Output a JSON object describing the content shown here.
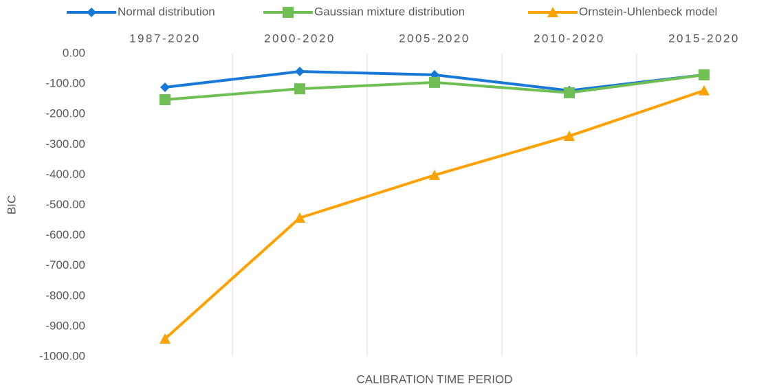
{
  "chart_data": {
    "type": "line",
    "categories": [
      "1987-2020",
      "2000-2020",
      "2005-2020",
      "2010-2020",
      "2015-2020"
    ],
    "series": [
      {
        "name": "Normal distribution",
        "color": "#1878d6",
        "marker": "diamond",
        "values": [
          -111,
          -59,
          -70,
          -122,
          -70
        ]
      },
      {
        "name": "Gaussian mixture distribution",
        "color": "#6fbf55",
        "marker": "square",
        "values": [
          -152,
          -116,
          -95,
          -129,
          -70
        ]
      },
      {
        "name": "Ornstein-Uhlenbeck model",
        "color": "#ffa200",
        "marker": "triangle",
        "values": [
          -941,
          -542,
          -401,
          -272,
          -122
        ]
      }
    ],
    "ylabel": "BIC",
    "xlabel": "CALIBRATION TIME PERIOD",
    "ylim": [
      -1000,
      0
    ],
    "yticks": [
      {
        "value": 0,
        "label": "0.00"
      },
      {
        "value": -100,
        "label": "-100.00"
      },
      {
        "value": -200,
        "label": "-200.00"
      },
      {
        "value": -300,
        "label": "-300.00"
      },
      {
        "value": -400,
        "label": "-400.00"
      },
      {
        "value": -500,
        "label": "-500.00"
      },
      {
        "value": -600,
        "label": "-600.00"
      },
      {
        "value": -700,
        "label": "-700.00"
      },
      {
        "value": -800,
        "label": "-800.00"
      },
      {
        "value": -900,
        "label": "-900.00"
      },
      {
        "value": -1000,
        "label": "-1000.00"
      }
    ],
    "grid": true,
    "legend": "top"
  }
}
